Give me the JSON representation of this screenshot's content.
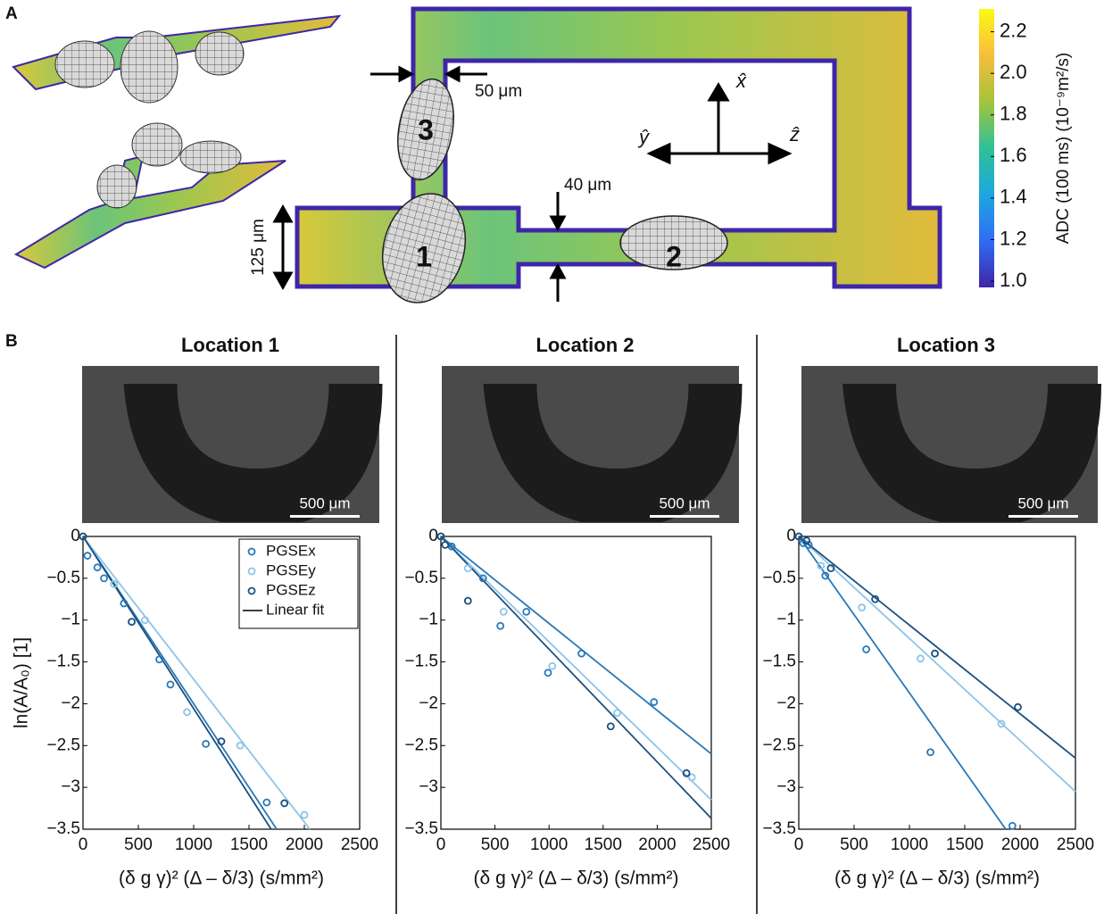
{
  "diagram": {
    "panel_labels": [
      "A",
      "B"
    ],
    "dimensions": [
      "50 μm",
      "40 μm",
      "125 μm"
    ],
    "locations": [
      "1",
      "2",
      "3"
    ],
    "axes": [
      "x̂",
      "ŷ",
      "ẑ"
    ]
  },
  "colorbar": {
    "title": "ADC (100 ms) (10⁻⁹m²/s)",
    "ylim": [
      0.97,
      2.31
    ],
    "yticks": [
      {
        "value": 1,
        "label": "1.0"
      },
      {
        "value": 1.2,
        "label": "1.2"
      },
      {
        "value": 1.4,
        "label": "1.4"
      },
      {
        "value": 1.6,
        "label": "1.6"
      },
      {
        "value": 1.8,
        "label": "1.8"
      },
      {
        "value": 2,
        "label": "2.0"
      },
      {
        "value": 2.2,
        "label": "2.2"
      }
    ],
    "colors": [
      "#3e26a8",
      "#2f6cf5",
      "#1ca8de",
      "#2ec197",
      "#a5c33b",
      "#f9bc3c",
      "#f9fa14"
    ]
  },
  "chart_data": [
    {
      "type": "scatter",
      "title": "Location 1",
      "image_scale_bar": "500 μm",
      "xlabel": "(δ g γ)² (Δ – δ/3) (s/mm²)",
      "ylabel": "ln(A/A₀) [1]",
      "xlim": [
        0,
        2500
      ],
      "ylim": [
        -3.5,
        0
      ],
      "xticks": [
        0,
        500,
        1000,
        1500,
        2000,
        2500
      ],
      "yticks": [
        0,
        {
          "value": -0.5,
          "label": "−0.5"
        },
        {
          "value": -1,
          "label": "−1"
        },
        {
          "value": -1.5,
          "label": "−1.5"
        },
        {
          "value": -2,
          "label": "−2"
        },
        {
          "value": -2.5,
          "label": "−2.5"
        },
        {
          "value": -3,
          "label": "−3"
        },
        {
          "value": -3.5,
          "label": "−3.5"
        }
      ],
      "legend": "upper right",
      "fit_label": "Linear fit",
      "series": [
        {
          "name": "PGSEx",
          "color": "#2878b8",
          "x": [
            0,
            40,
            130,
            190,
            370,
            690,
            790,
            1110,
            1660
          ],
          "values": [
            0,
            -0.23,
            -0.37,
            -0.5,
            -0.8,
            -1.47,
            -1.77,
            -2.48,
            -3.18
          ]
        },
        {
          "name": "PGSEy",
          "color": "#8ec4e6",
          "x": [
            0,
            280,
            560,
            940,
            1420,
            2000
          ],
          "values": [
            0,
            -0.57,
            -1.0,
            -2.1,
            -2.5,
            -3.33
          ]
        },
        {
          "name": "PGSEz",
          "color": "#1b4f80",
          "x": [
            0,
            440,
            1250,
            1820
          ],
          "values": [
            0,
            -1.02,
            -2.45,
            -3.19
          ]
        }
      ],
      "fit_lines": [
        {
          "color": "#2878b8",
          "x": [
            0,
            1750
          ],
          "values": [
            0,
            -3.5
          ]
        },
        {
          "color": "#8ec4e6",
          "x": [
            0,
            2050
          ],
          "values": [
            0,
            -3.5
          ]
        },
        {
          "color": "#1b4f80",
          "x": [
            0,
            1700
          ],
          "values": [
            0,
            -3.5
          ]
        }
      ]
    },
    {
      "type": "scatter",
      "title": "Location 2",
      "image_scale_bar": "500 μm",
      "xlabel": "(δ g γ)² (Δ – δ/3) (s/mm²)",
      "xlim": [
        0,
        2500
      ],
      "ylim": [
        -3.5,
        0
      ],
      "xticks": [
        0,
        500,
        1000,
        1500,
        2000,
        2500
      ],
      "yticks": [
        0,
        {
          "value": -0.5,
          "label": "−0.5"
        },
        {
          "value": -1,
          "label": "−1"
        },
        {
          "value": -1.5,
          "label": "−1.5"
        },
        {
          "value": -2,
          "label": "−2"
        },
        {
          "value": -2.5,
          "label": "−2.5"
        },
        {
          "value": -3,
          "label": "−3"
        },
        {
          "value": -3.5,
          "label": "−3.5"
        }
      ],
      "series": [
        {
          "color": "#2878b8",
          "x": [
            0,
            100,
            390,
            550,
            790,
            990,
            1300,
            1970
          ],
          "values": [
            0,
            -0.12,
            -0.5,
            -1.07,
            -0.9,
            -1.63,
            -1.4,
            -1.98
          ]
        },
        {
          "color": "#8ec4e6",
          "x": [
            0,
            250,
            580,
            1030,
            1630,
            2320
          ],
          "values": [
            0,
            -0.38,
            -0.9,
            -1.55,
            -2.11,
            -2.88
          ]
        },
        {
          "color": "#1b4f80",
          "x": [
            0,
            40,
            250,
            1570,
            2270
          ],
          "values": [
            0,
            -0.1,
            -0.77,
            -2.27,
            -2.83
          ]
        }
      ],
      "fit_lines": [
        {
          "color": "#2878b8",
          "x": [
            0,
            2500
          ],
          "values": [
            0,
            -2.6
          ]
        },
        {
          "color": "#8ec4e6",
          "x": [
            0,
            2500
          ],
          "values": [
            0,
            -3.15
          ]
        },
        {
          "color": "#1b4f80",
          "x": [
            0,
            2500
          ],
          "values": [
            0,
            -3.37
          ]
        }
      ]
    },
    {
      "type": "scatter",
      "title": "Location 3",
      "image_scale_bar": "500 μm",
      "xlabel": "(δ g γ)² (Δ – δ/3) (s/mm²)",
      "xlim": [
        0,
        2500
      ],
      "ylim": [
        -3.5,
        0
      ],
      "xticks": [
        0,
        500,
        1000,
        1500,
        2000,
        2500
      ],
      "yticks": [
        0,
        {
          "value": -0.5,
          "label": "−0.5"
        },
        {
          "value": -1,
          "label": "−1"
        },
        {
          "value": -1.5,
          "label": "−1.5"
        },
        {
          "value": -2,
          "label": "−2"
        },
        {
          "value": -2.5,
          "label": "−2.5"
        },
        {
          "value": -3,
          "label": "−3"
        },
        {
          "value": -3.5,
          "label": "−3.5"
        }
      ],
      "series": [
        {
          "color": "#2878b8",
          "x": [
            0,
            40,
            90,
            240,
            610,
            1190,
            1930
          ],
          "values": [
            0,
            -0.08,
            -0.1,
            -0.47,
            -1.35,
            -2.58,
            -3.46
          ]
        },
        {
          "color": "#8ec4e6",
          "x": [
            0,
            200,
            570,
            1100,
            1830
          ],
          "values": [
            0,
            -0.35,
            -0.85,
            -1.46,
            -2.24
          ]
        },
        {
          "color": "#1b4f80",
          "x": [
            0,
            70,
            290,
            690,
            1230,
            1980
          ],
          "values": [
            0,
            -0.05,
            -0.38,
            -0.75,
            -1.4,
            -2.04
          ]
        }
      ],
      "fit_lines": [
        {
          "color": "#2878b8",
          "x": [
            0,
            1870
          ],
          "values": [
            0,
            -3.5
          ]
        },
        {
          "color": "#8ec4e6",
          "x": [
            0,
            2500
          ],
          "values": [
            0,
            -3.05
          ]
        },
        {
          "color": "#1b4f80",
          "x": [
            0,
            2500
          ],
          "values": [
            0,
            -2.65
          ]
        }
      ]
    }
  ]
}
